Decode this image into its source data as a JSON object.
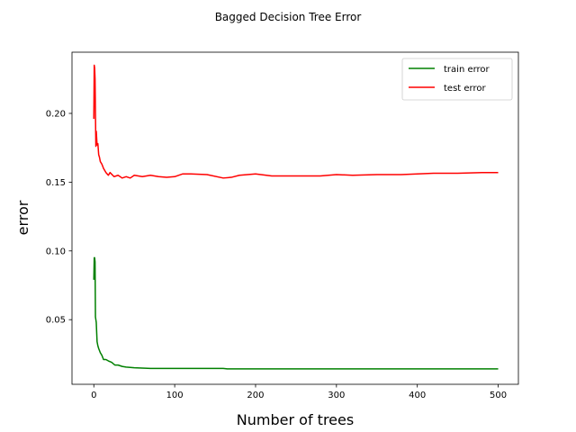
{
  "chart_data": {
    "type": "line",
    "title": "Bagged Decision Tree Error",
    "xlabel": "Number of trees",
    "ylabel": "error",
    "xlim": [
      -27,
      525
    ],
    "ylim": [
      0.003,
      0.2445
    ],
    "x_ticks": [
      0,
      100,
      200,
      300,
      400,
      500
    ],
    "x_tick_labels": [
      "0",
      "100",
      "200",
      "300",
      "400",
      "500"
    ],
    "y_ticks": [
      0.05,
      0.1,
      0.15,
      0.2
    ],
    "y_tick_labels": [
      "0.05",
      "0.10",
      "0.15",
      "0.20"
    ],
    "grid": false,
    "legend_position": "top-right",
    "series": [
      {
        "name": "train error",
        "color": "#008000",
        "x": [
          0,
          0.5,
          1,
          1.5,
          2,
          2.5,
          3,
          4,
          5,
          6,
          8,
          10,
          12,
          15,
          18,
          22,
          26,
          30,
          35,
          40,
          50,
          60,
          70,
          80,
          100,
          120,
          140,
          160,
          165,
          180,
          200,
          250,
          300,
          350,
          400,
          450,
          500
        ],
        "y": [
          0.079,
          0.095,
          0.095,
          0.092,
          0.052,
          0.05,
          0.048,
          0.034,
          0.031,
          0.029,
          0.026,
          0.024,
          0.021,
          0.021,
          0.02,
          0.019,
          0.017,
          0.017,
          0.016,
          0.0155,
          0.015,
          0.0148,
          0.0145,
          0.0145,
          0.0145,
          0.0145,
          0.0145,
          0.0145,
          0.0142,
          0.0142,
          0.0142,
          0.0142,
          0.0142,
          0.0142,
          0.0142,
          0.0142,
          0.0142
        ]
      },
      {
        "name": "test error",
        "color": "#ff0000",
        "x": [
          0,
          0.5,
          1,
          1.5,
          2,
          2.5,
          3,
          4,
          5,
          6,
          7,
          8,
          10,
          12,
          15,
          18,
          20,
          25,
          30,
          35,
          40,
          45,
          50,
          60,
          70,
          80,
          90,
          100,
          110,
          120,
          140,
          160,
          170,
          180,
          200,
          220,
          250,
          280,
          300,
          320,
          350,
          380,
          400,
          420,
          450,
          480,
          500
        ],
        "y": [
          0.196,
          0.235,
          0.233,
          0.225,
          0.2,
          0.176,
          0.187,
          0.177,
          0.178,
          0.17,
          0.168,
          0.165,
          0.163,
          0.16,
          0.157,
          0.155,
          0.157,
          0.154,
          0.155,
          0.153,
          0.154,
          0.153,
          0.155,
          0.154,
          0.155,
          0.154,
          0.1535,
          0.154,
          0.156,
          0.156,
          0.1555,
          0.153,
          0.1535,
          0.155,
          0.156,
          0.1545,
          0.1545,
          0.1545,
          0.1555,
          0.155,
          0.1555,
          0.1555,
          0.156,
          0.1565,
          0.1565,
          0.157,
          0.157
        ]
      }
    ]
  }
}
